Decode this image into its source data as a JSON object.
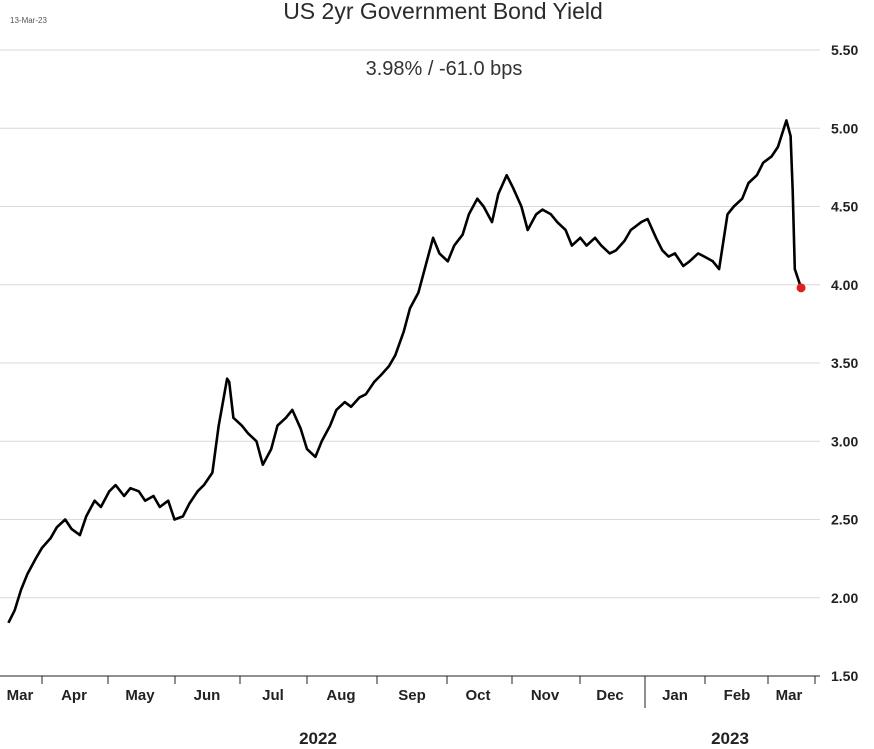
{
  "date_stamp": "13-Mar-23",
  "chart_data": {
    "type": "line",
    "title": "US 2yr Government Bond Yield",
    "subtitle": "3.98%  /  -61.0 bps",
    "xlabel": "",
    "ylabel": "",
    "ylim": [
      1.5,
      5.5
    ],
    "y_ticks": [
      "1.50",
      "2.00",
      "2.50",
      "3.00",
      "3.50",
      "4.00",
      "4.50",
      "5.00",
      "5.50"
    ],
    "x_ticks": [
      "Mar",
      "Apr",
      "May",
      "Jun",
      "Jul",
      "Aug",
      "Sep",
      "Oct",
      "Nov",
      "Dec",
      "Jan",
      "Feb",
      "Mar"
    ],
    "year_labels": [
      "2022",
      "2023"
    ],
    "grid": true,
    "line_color": "#000000",
    "last_point_color": "#e02020",
    "series": [
      {
        "x": [
          "2022-03-01",
          "2022-03-04",
          "2022-03-07",
          "2022-03-10",
          "2022-03-14",
          "2022-03-17",
          "2022-03-21",
          "2022-03-24",
          "2022-03-28",
          "2022-03-31",
          "2022-04-04",
          "2022-04-07",
          "2022-04-11",
          "2022-04-14",
          "2022-04-18",
          "2022-04-21",
          "2022-04-25",
          "2022-04-28",
          "2022-05-02",
          "2022-05-05",
          "2022-05-09",
          "2022-05-12",
          "2022-05-16",
          "2022-05-19",
          "2022-05-23",
          "2022-05-26",
          "2022-05-30",
          "2022-06-02",
          "2022-06-06",
          "2022-06-09",
          "2022-06-13",
          "2022-06-14",
          "2022-06-16",
          "2022-06-20",
          "2022-06-23",
          "2022-06-27",
          "2022-06-30",
          "2022-07-04",
          "2022-07-07",
          "2022-07-11",
          "2022-07-14",
          "2022-07-18",
          "2022-07-21",
          "2022-07-25",
          "2022-07-28",
          "2022-08-01",
          "2022-08-04",
          "2022-08-08",
          "2022-08-11",
          "2022-08-15",
          "2022-08-18",
          "2022-08-22",
          "2022-08-25",
          "2022-08-29",
          "2022-09-01",
          "2022-09-05",
          "2022-09-08",
          "2022-09-12",
          "2022-09-15",
          "2022-09-19",
          "2022-09-22",
          "2022-09-26",
          "2022-09-29",
          "2022-10-03",
          "2022-10-06",
          "2022-10-10",
          "2022-10-13",
          "2022-10-17",
          "2022-10-20",
          "2022-10-24",
          "2022-10-27",
          "2022-10-31",
          "2022-11-03",
          "2022-11-07",
          "2022-11-10",
          "2022-11-14",
          "2022-11-17",
          "2022-11-21",
          "2022-11-24",
          "2022-11-28",
          "2022-12-01",
          "2022-12-05",
          "2022-12-08",
          "2022-12-12",
          "2022-12-15",
          "2022-12-19",
          "2022-12-22",
          "2022-12-27",
          "2022-12-30",
          "2023-01-03",
          "2023-01-06",
          "2023-01-09",
          "2023-01-12",
          "2023-01-16",
          "2023-01-19",
          "2023-01-23",
          "2023-01-26",
          "2023-01-30",
          "2023-02-02",
          "2023-02-06",
          "2023-02-09",
          "2023-02-13",
          "2023-02-16",
          "2023-02-20",
          "2023-02-23",
          "2023-02-27",
          "2023-03-02",
          "2023-03-06",
          "2023-03-08",
          "2023-03-09",
          "2023-03-10",
          "2023-03-13"
        ],
        "y": [
          1.84,
          1.92,
          2.05,
          2.15,
          2.25,
          2.32,
          2.38,
          2.45,
          2.5,
          2.44,
          2.4,
          2.52,
          2.62,
          2.58,
          2.68,
          2.72,
          2.65,
          2.7,
          2.68,
          2.62,
          2.65,
          2.58,
          2.62,
          2.5,
          2.52,
          2.6,
          2.68,
          2.72,
          2.8,
          3.1,
          3.4,
          3.38,
          3.15,
          3.1,
          3.05,
          3.0,
          2.85,
          2.95,
          3.1,
          3.15,
          3.2,
          3.08,
          2.95,
          2.9,
          3.0,
          3.1,
          3.2,
          3.25,
          3.22,
          3.28,
          3.3,
          3.38,
          3.42,
          3.48,
          3.55,
          3.7,
          3.85,
          3.95,
          4.1,
          4.3,
          4.2,
          4.15,
          4.25,
          4.32,
          4.45,
          4.55,
          4.5,
          4.4,
          4.58,
          4.7,
          4.62,
          4.5,
          4.35,
          4.45,
          4.48,
          4.45,
          4.4,
          4.35,
          4.25,
          4.3,
          4.25,
          4.3,
          4.25,
          4.2,
          4.22,
          4.28,
          4.35,
          4.4,
          4.42,
          4.3,
          4.22,
          4.18,
          4.2,
          4.12,
          4.15,
          4.2,
          4.18,
          4.15,
          4.1,
          4.45,
          4.5,
          4.55,
          4.65,
          4.7,
          4.78,
          4.82,
          4.88,
          5.05,
          4.95,
          4.6,
          4.1,
          3.98
        ]
      }
    ]
  }
}
